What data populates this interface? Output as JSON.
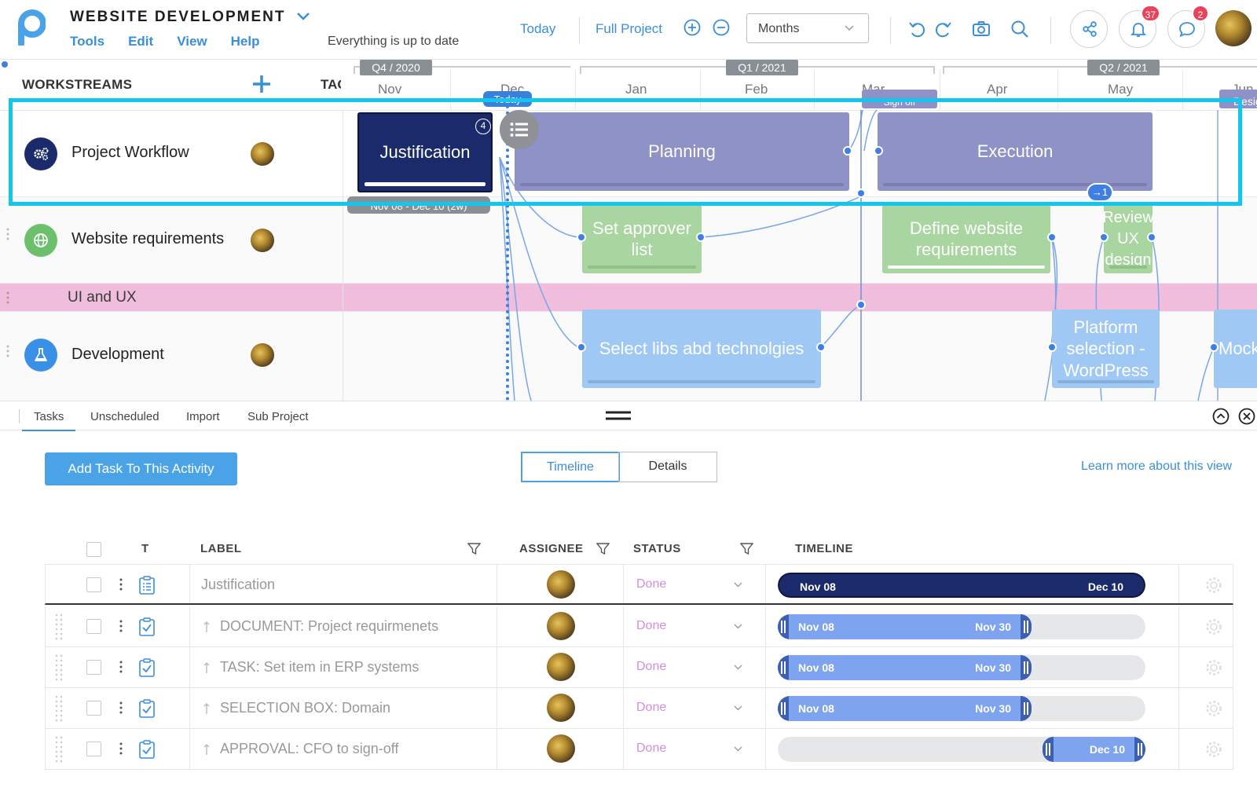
{
  "header": {
    "app_title": "WEBSITE DEVELOPMENT",
    "menu": [
      "Tools",
      "Edit",
      "View",
      "Help"
    ],
    "sync_status": "Everything is up to date",
    "today_link": "Today",
    "full_project_link": "Full Project",
    "zoom_select": "Months",
    "notifications_count": "37",
    "messages_count": "2"
  },
  "gantt": {
    "workstreams_heading": "WORKSTREAMS",
    "tags_heading": "TAGS",
    "quarters": [
      "Q4 / 2020",
      "Q1 / 2021",
      "Q2 / 2021"
    ],
    "months": [
      "Nov",
      "Dec",
      "Jan",
      "Feb",
      "Mar",
      "Apr",
      "May",
      "Jun"
    ],
    "today_marker": "Today",
    "selected_range_pill": "Nov 08 - Dec 10 (2w)",
    "rows": [
      {
        "label": "Project Workflow",
        "icon": "gears-icon",
        "color": "#1b2a6b"
      },
      {
        "label": "Website requirements",
        "icon": "globe-icon",
        "color": "#6cc06c"
      },
      {
        "label": "UI and UX",
        "group": true,
        "color": "#f0bedc"
      },
      {
        "label": "Development",
        "icon": "flask-icon",
        "color": "#3a8fe6"
      }
    ],
    "bars": {
      "justification": {
        "label": "Justification",
        "count": "4"
      },
      "planning": {
        "label": "Planning"
      },
      "execution": {
        "label": "Execution",
        "badge": "→1"
      },
      "set_approver": {
        "label": "Set approver list"
      },
      "define_requirements": {
        "label": "Define website requirements"
      },
      "review_ux": {
        "label": "Review UX design"
      },
      "select_libs": {
        "label": "Select libs abd technolgies"
      },
      "platform": {
        "label": "Platform selection - WordPress"
      },
      "mockups": {
        "label": "Mockups"
      },
      "top_partial": {
        "label": "Sign off"
      },
      "top_partial_right": {
        "label": "Design"
      }
    }
  },
  "pane": {
    "tabs": [
      "Tasks",
      "Unscheduled",
      "Import",
      "Sub Project"
    ],
    "add_task_button": "Add Task To This Activity",
    "view_toggle": [
      "Timeline",
      "Details"
    ],
    "learn_more": "Learn more about this view",
    "columns": {
      "type": "T",
      "label": "LABEL",
      "assignee": "ASSIGNEE",
      "status": "STATUS",
      "timeline": "TIMELINE"
    },
    "tasks": [
      {
        "label": "Justification",
        "status": "Done",
        "start": "Nov 08",
        "end": "Dec 10",
        "parent": true,
        "fill_from": 0,
        "fill_to": 1
      },
      {
        "label": "DOCUMENT: Project requirmenets",
        "status": "Done",
        "start": "Nov 08",
        "end": "Nov 30",
        "fill_from": 0,
        "fill_to": 0.69
      },
      {
        "label": "TASK: Set item in ERP systems",
        "status": "Done",
        "start": "Nov 08",
        "end": "Nov 30",
        "fill_from": 0,
        "fill_to": 0.69
      },
      {
        "label": "SELECTION BOX: Domain",
        "status": "Done",
        "start": "Nov 08",
        "end": "Nov 30",
        "fill_from": 0,
        "fill_to": 0.69
      },
      {
        "label": "APPROVAL: CFO to sign-off",
        "status": "Done",
        "start": "",
        "end": "Dec 10",
        "fill_from": 0.72,
        "fill_to": 1
      }
    ]
  },
  "colors": {
    "accent": "#3a8fd9",
    "justification": "#1b2a6b",
    "planning": "#8e92c6",
    "requirements": "#a9d6a0",
    "development": "#9fc8f5",
    "ui_ux": "#f0bedc",
    "task_fill": "#7fa4ef",
    "highlight": "#12c7ee"
  }
}
